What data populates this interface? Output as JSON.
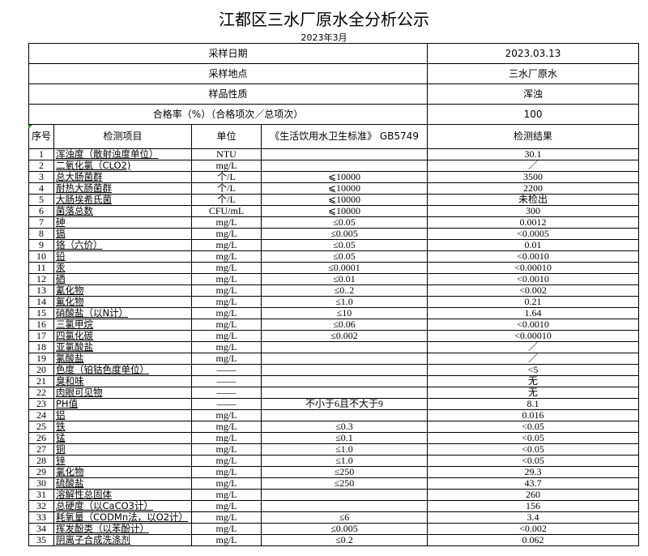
{
  "title": "江都区三水厂原水全分析公示",
  "subtitle": "2023年3月",
  "info": [
    {
      "label": "采样日期",
      "value": "2023.03.13"
    },
    {
      "label": "采样地点",
      "value": "三水厂原水"
    },
    {
      "label": "样品性质",
      "value": "浑浊"
    },
    {
      "label": "合格率（%）（合格项次／总项次）",
      "value": "100"
    }
  ],
  "headers": {
    "seq": "序号",
    "item": "检测项目",
    "unit": "单位",
    "standard": "《生活饮用水卫生标准》 GB5749",
    "result": "检测结果"
  },
  "rows": [
    [
      "1",
      "浑浊度（散射浊度单位）",
      "NTU",
      "",
      "30.1"
    ],
    [
      "2",
      "二氧化氯（CLO2)",
      "mg/L",
      "",
      "／"
    ],
    [
      "3",
      "总大肠菌群",
      "个/L",
      "⩽10000",
      "3500"
    ],
    [
      "4",
      "耐热大肠菌群",
      "个/L",
      "⩽10000",
      "2200"
    ],
    [
      "5",
      "大肠埃希氏菌",
      "个/L",
      "⩽10000",
      "未检出"
    ],
    [
      "6",
      "菌落总数",
      "CFU/mL",
      "⩽10000",
      "300"
    ],
    [
      "7",
      "砷",
      "mg/L",
      "≤0.05",
      "0.0012"
    ],
    [
      "8",
      "镉",
      "mg/L",
      "≤0.005",
      "<0.0005"
    ],
    [
      "9",
      "铬（六价）",
      "mg/L",
      "≤0.05",
      "0.01"
    ],
    [
      "10",
      "铅",
      "mg/L",
      "≤0.05",
      "<0.0010"
    ],
    [
      "11",
      "汞",
      "mg/L",
      "≤0.0001",
      "<0.00010"
    ],
    [
      "12",
      "硒",
      "mg/L",
      "≤0.01",
      "<0.0010"
    ],
    [
      "13",
      "氰化物",
      "mg/L",
      "≤0..2",
      "<0.002"
    ],
    [
      "14",
      "氟化物",
      "mg/L",
      "≤1.0",
      "0.21"
    ],
    [
      "15",
      "硝酸盐（以N计）",
      "mg/L",
      "≤10",
      "1.64"
    ],
    [
      "16",
      "三氯甲烷",
      "mg/L",
      "≤0.06",
      "<0.0010"
    ],
    [
      "17",
      "四氯化碳",
      "mg/L",
      "≤0.002",
      "<0.00010"
    ],
    [
      "18",
      "亚氯酸盐",
      "mg/L",
      "",
      "／"
    ],
    [
      "19",
      "氯酸盐",
      "mg/L",
      "",
      "／"
    ],
    [
      "20",
      "色度（铂钴色度单位）",
      "——",
      "",
      "<5"
    ],
    [
      "21",
      "臭和味",
      "——",
      "",
      "无"
    ],
    [
      "22",
      "肉眼可见物",
      "——",
      "",
      "无"
    ],
    [
      "23",
      "PH值",
      "——",
      "不小于6且不大于9",
      "8.1"
    ],
    [
      "24",
      "铝",
      "mg/L",
      "",
      "0.016"
    ],
    [
      "25",
      "铁",
      "mg/L",
      "≤0.3",
      "<0.05"
    ],
    [
      "26",
      "锰",
      "mg/L",
      "≤0.1",
      "<0.05"
    ],
    [
      "27",
      "铜",
      "mg/L",
      "≤1.0",
      "<0.05"
    ],
    [
      "28",
      "锌",
      "mg/L",
      "≤1.0",
      "<0.05"
    ],
    [
      "29",
      "氯化物",
      "mg/L",
      "≤250",
      "29.3"
    ],
    [
      "30",
      "硫酸盐",
      "mg/L",
      "≤250",
      "43.7"
    ],
    [
      "31",
      "溶解性总固体",
      "mg/L",
      "",
      "260"
    ],
    [
      "32",
      "总硬度（以CaCO3计）",
      "mg/L",
      "",
      "156"
    ],
    [
      "33",
      "耗氧量（CODMn法，以O2计）",
      "mg/L",
      "≤6",
      "3.4"
    ],
    [
      "34",
      "挥发酚类（以苯酚计）",
      "mg/L",
      "≤0.005",
      "<0.002"
    ],
    [
      "35",
      "阴离子合成洗涤剂",
      "mg/L",
      "≤0.2",
      "0.062"
    ]
  ]
}
